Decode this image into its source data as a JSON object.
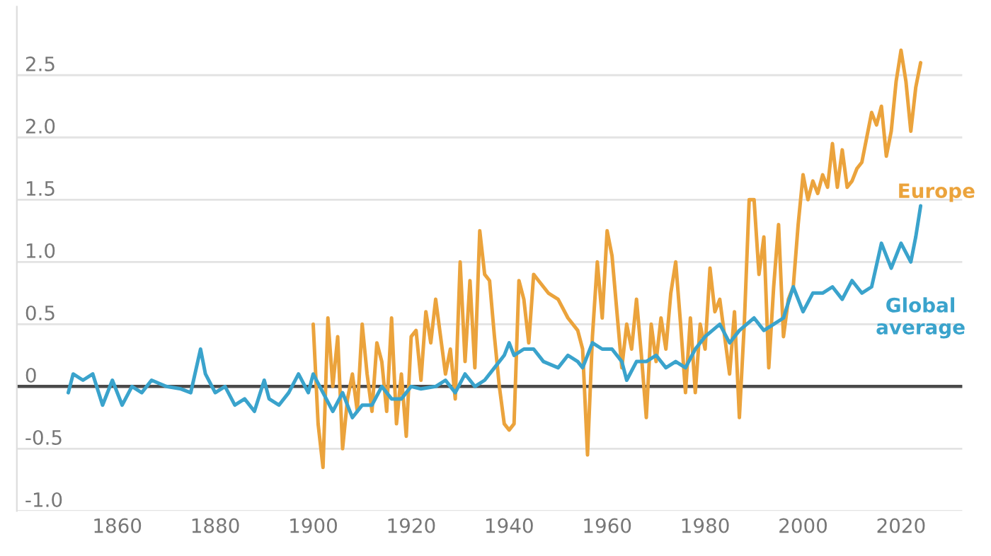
{
  "chart_data": {
    "type": "line",
    "xlim": [
      1839.5,
      2032.5
    ],
    "ylim": [
      -1.0,
      3.05
    ],
    "xticks": [
      1860,
      1880,
      1900,
      1920,
      1940,
      1960,
      1980,
      2000,
      2020
    ],
    "yticks": [
      {
        "value": -1,
        "label": "-1.0"
      },
      -0.5,
      0,
      0.5,
      {
        "value": 1,
        "label": "1.0"
      },
      1.5,
      {
        "value": 2,
        "label": "2.0"
      },
      2.5
    ],
    "grid": "y",
    "legend": false,
    "ref_lines": [
      {
        "axis": "y",
        "value": 0,
        "color": "#4a4a4a"
      }
    ],
    "series": [
      {
        "name": "Europe",
        "color": "#eba33c",
        "x": [
          1900,
          1901,
          1902,
          1903,
          1904,
          1905,
          1906,
          1907,
          1908,
          1909,
          1910,
          1911,
          1912,
          1913,
          1914,
          1915,
          1916,
          1917,
          1918,
          1919,
          1920,
          1921,
          1922,
          1923,
          1924,
          1925,
          1926,
          1927,
          1928,
          1929,
          1930,
          1931,
          1932,
          1933,
          1934,
          1935,
          1936,
          1937,
          1938,
          1939,
          1940,
          1941,
          1942,
          1943,
          1944,
          1945,
          1946,
          1947,
          1948,
          1950,
          1952,
          1954,
          1955,
          1956,
          1957,
          1958,
          1959,
          1960,
          1961,
          1962,
          1963,
          1964,
          1965,
          1966,
          1967,
          1968,
          1969,
          1970,
          1971,
          1972,
          1973,
          1974,
          1975,
          1976,
          1977,
          1978,
          1979,
          1980,
          1981,
          1982,
          1983,
          1984,
          1985,
          1986,
          1987,
          1988,
          1989,
          1990,
          1991,
          1992,
          1993,
          1994,
          1995,
          1996,
          1997,
          1998,
          1999,
          2000,
          2001,
          2002,
          2003,
          2004,
          2005,
          2006,
          2007,
          2008,
          2009,
          2010,
          2011,
          2012,
          2014,
          2015,
          2016,
          2017,
          2018,
          2019,
          2020,
          2021,
          2022,
          2023,
          2024
        ],
        "values": [
          0.5,
          -0.3,
          -0.65,
          0.55,
          0.0,
          0.4,
          -0.5,
          -0.1,
          0.1,
          -0.2,
          0.5,
          0.1,
          -0.2,
          0.35,
          0.2,
          -0.2,
          0.55,
          -0.3,
          0.1,
          -0.4,
          0.4,
          0.45,
          0.05,
          0.6,
          0.35,
          0.7,
          0.4,
          0.1,
          0.3,
          -0.1,
          1.0,
          0.2,
          0.85,
          0.15,
          1.25,
          0.9,
          0.85,
          0.4,
          0.0,
          -0.3,
          -0.35,
          -0.3,
          0.85,
          0.7,
          0.35,
          0.9,
          0.85,
          0.8,
          0.75,
          0.7,
          0.55,
          0.45,
          0.3,
          -0.55,
          0.4,
          1.0,
          0.55,
          1.25,
          1.05,
          0.6,
          0.15,
          0.5,
          0.3,
          0.7,
          0.25,
          -0.25,
          0.5,
          0.2,
          0.55,
          0.3,
          0.75,
          1.0,
          0.5,
          -0.05,
          0.55,
          -0.05,
          0.5,
          0.3,
          0.95,
          0.6,
          0.7,
          0.4,
          0.1,
          0.6,
          -0.25,
          0.5,
          1.5,
          1.5,
          0.9,
          1.2,
          0.15,
          0.8,
          1.3,
          0.4,
          0.7,
          0.8,
          1.3,
          1.7,
          1.5,
          1.65,
          1.55,
          1.7,
          1.6,
          1.95,
          1.6,
          1.9,
          1.6,
          1.65,
          1.75,
          1.8,
          2.2,
          2.1,
          2.25,
          1.85,
          2.05,
          2.45,
          2.7,
          2.45,
          2.05,
          2.4,
          2.6
        ]
      },
      {
        "name": "Global\naverage",
        "color": "#3aa3cc",
        "x": [
          1850,
          1851,
          1853,
          1855,
          1857,
          1859,
          1861,
          1863,
          1865,
          1867,
          1870,
          1873,
          1875,
          1877,
          1878,
          1880,
          1882,
          1884,
          1886,
          1888,
          1890,
          1891,
          1893,
          1895,
          1897,
          1899,
          1900,
          1902,
          1904,
          1906,
          1908,
          1910,
          1912,
          1914,
          1916,
          1918,
          1920,
          1922,
          1925,
          1927,
          1929,
          1931,
          1933,
          1935,
          1937,
          1939,
          1940,
          1941,
          1943,
          1945,
          1947,
          1950,
          1952,
          1954,
          1955,
          1957,
          1959,
          1961,
          1963,
          1964,
          1966,
          1968,
          1970,
          1972,
          1974,
          1976,
          1978,
          1980,
          1983,
          1985,
          1987,
          1990,
          1992,
          1994,
          1996,
          1998,
          2000,
          2002,
          2004,
          2006,
          2008,
          2010,
          2012,
          2014,
          2016,
          2018,
          2020,
          2022,
          2023,
          2024
        ],
        "values": [
          -0.05,
          0.1,
          0.05,
          0.1,
          -0.15,
          0.05,
          -0.15,
          0.0,
          -0.05,
          0.05,
          0.0,
          -0.02,
          -0.05,
          0.3,
          0.1,
          -0.05,
          0.0,
          -0.15,
          -0.1,
          -0.2,
          0.05,
          -0.1,
          -0.15,
          -0.05,
          0.1,
          -0.05,
          0.1,
          -0.05,
          -0.2,
          -0.05,
          -0.25,
          -0.15,
          -0.15,
          0.0,
          -0.1,
          -0.1,
          0.0,
          -0.02,
          0.0,
          0.05,
          -0.05,
          0.1,
          0.0,
          0.05,
          0.15,
          0.25,
          0.35,
          0.25,
          0.3,
          0.3,
          0.2,
          0.15,
          0.25,
          0.2,
          0.15,
          0.35,
          0.3,
          0.3,
          0.2,
          0.05,
          0.2,
          0.2,
          0.25,
          0.15,
          0.2,
          0.15,
          0.3,
          0.4,
          0.5,
          0.35,
          0.45,
          0.55,
          0.45,
          0.5,
          0.55,
          0.8,
          0.6,
          0.75,
          0.75,
          0.8,
          0.7,
          0.85,
          0.75,
          0.8,
          1.15,
          0.95,
          1.15,
          1.0,
          1.2,
          1.45
        ]
      }
    ]
  }
}
